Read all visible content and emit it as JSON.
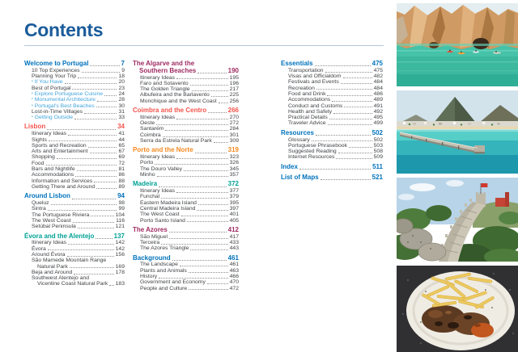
{
  "page_title": "Contents",
  "palette": {
    "blue": "#0072bc",
    "red": "#f2544b",
    "teal": "#00a295",
    "maroon": "#9e2b62",
    "orange": "#f5891f",
    "bullet_blue": "#41a4dc",
    "body_text": "#404245",
    "title_blue": "#1b5c9b",
    "rule": "#b5c6d6",
    "leader_dots": "#8f8f8f"
  },
  "toc": {
    "columns": [
      {
        "sections": [
          {
            "title": "Welcome to Portugal",
            "page": "7",
            "color": "blue",
            "items": [
              {
                "label": "10 Top Experiences",
                "page": "9"
              },
              {
                "label": "Planning Your Trip",
                "page": "18"
              },
              {
                "label": "If You Have",
                "page": "20",
                "bullet": true
              },
              {
                "label": "Best of Portugal",
                "page": "23"
              },
              {
                "label": "Explore Portuguese Cuisine",
                "page": "24",
                "bullet": true
              },
              {
                "label": "Monumental Architecture",
                "page": "28",
                "bullet": true
              },
              {
                "label": "Portugal's Best Beaches",
                "page": "30",
                "bullet": true
              },
              {
                "label": "Lost-in-Time Villages",
                "page": "31"
              },
              {
                "label": "Getting Outside",
                "page": "33",
                "bullet": true
              }
            ]
          },
          {
            "title": "Lisbon",
            "page": "34",
            "color": "red",
            "items": [
              {
                "label": "Itinerary Ideas",
                "page": "41"
              },
              {
                "label": "Sights",
                "page": "44"
              },
              {
                "label": "Sports and Recreation",
                "page": "65"
              },
              {
                "label": "Arts and Entertainment",
                "page": "67"
              },
              {
                "label": "Shopping",
                "page": "69"
              },
              {
                "label": "Food",
                "page": "72"
              },
              {
                "label": "Bars and Nightlife",
                "page": "81"
              },
              {
                "label": "Accommodations",
                "page": "86"
              },
              {
                "label": "Information and Services",
                "page": "88"
              },
              {
                "label": "Getting There and Around",
                "page": "89"
              }
            ]
          },
          {
            "title": "Around Lisbon",
            "page": "94",
            "color": "blue",
            "items": [
              {
                "label": "Queluz",
                "page": "98"
              },
              {
                "label": "Sintra",
                "page": "99"
              },
              {
                "label": "The Portuguese Riviera",
                "page": "104"
              },
              {
                "label": "The West Coast",
                "page": "116"
              },
              {
                "label": "Setúbal Peninsula",
                "page": "121"
              }
            ]
          },
          {
            "title": "Évora and the Alentejo",
            "page": "137",
            "color": "teal",
            "items": [
              {
                "label": "Itinerary Ideas",
                "page": "142"
              },
              {
                "label": "Évora",
                "page": "142"
              },
              {
                "label": "Around Évora",
                "page": "156"
              },
              {
                "lines": [
                  "São Mamede Mountain Range",
                  "Natural Park"
                ],
                "page": "169"
              },
              {
                "label": "Beja and Around",
                "page": "178"
              },
              {
                "lines": [
                  "Southwest Alentejo and",
                  "Vicentine Coast Natural Park"
                ],
                "page": "183"
              }
            ]
          }
        ]
      },
      {
        "sections": [
          {
            "title_lines": [
              "The Algarve and the",
              "Southern Beaches"
            ],
            "page": "190",
            "color": "maroon",
            "items": [
              {
                "label": "Itinerary Ideas",
                "page": "195"
              },
              {
                "label": "Faro and Sotavento",
                "page": "196"
              },
              {
                "label": "The Golden Triangle",
                "page": "217"
              },
              {
                "label": "Albufeira and the Barlavento",
                "page": "225"
              },
              {
                "label": "Monchique and the West Coast",
                "page": "256"
              }
            ]
          },
          {
            "title": "Coimbra and the Centro",
            "page": "266",
            "color": "red",
            "items": [
              {
                "label": "Itinerary Ideas",
                "page": "270"
              },
              {
                "label": "Oeste",
                "page": "272"
              },
              {
                "label": "Santarém",
                "page": "284"
              },
              {
                "label": "Coimbra",
                "page": "301"
              },
              {
                "label": "Serra da Estrela Natural Park",
                "page": "309"
              }
            ]
          },
          {
            "title": "Porto and the Norte",
            "page": "319",
            "color": "orange",
            "items": [
              {
                "label": "Itinerary Ideas",
                "page": "323"
              },
              {
                "label": "Porto",
                "page": "326"
              },
              {
                "label": "The Douro Valley",
                "page": "345"
              },
              {
                "label": "Minho",
                "page": "357"
              }
            ]
          },
          {
            "title": "Madeira",
            "page": "372",
            "color": "teal",
            "items": [
              {
                "label": "Itinerary Ideas",
                "page": "377"
              },
              {
                "label": "Funchal",
                "page": "379"
              },
              {
                "label": "Eastern Madeira Island",
                "page": "395"
              },
              {
                "label": "Central Madeira Island",
                "page": "397"
              },
              {
                "label": "The West Coast",
                "page": "401"
              },
              {
                "label": "Porto Santo Island",
                "page": "405"
              }
            ]
          },
          {
            "title": "The Azores",
            "page": "412",
            "color": "maroon",
            "items": [
              {
                "label": "São Miguel",
                "page": "417"
              },
              {
                "label": "Terceira",
                "page": "433"
              },
              {
                "label": "The Azores Triangle",
                "page": "443"
              }
            ]
          },
          {
            "title": "Background",
            "page": "461",
            "color": "blue",
            "items": [
              {
                "label": "The Landscape",
                "page": "461"
              },
              {
                "label": "Plants and Animals",
                "page": "463"
              },
              {
                "label": "History",
                "page": "466"
              },
              {
                "label": "Government and Economy",
                "page": "470"
              },
              {
                "label": "People and Culture",
                "page": "472"
              }
            ]
          }
        ]
      },
      {
        "sections": [
          {
            "title": "Essentials",
            "page": "475",
            "color": "blue",
            "items": [
              {
                "label": "Transportation",
                "page": "475"
              },
              {
                "label": "Visas and Officialdom",
                "page": "482"
              },
              {
                "label": "Festivals and Events",
                "page": "484"
              },
              {
                "label": "Recreation",
                "page": "484"
              },
              {
                "label": "Food and Drink",
                "page": "486"
              },
              {
                "label": "Accommodations",
                "page": "489"
              },
              {
                "label": "Conduct and Customs",
                "page": "491"
              },
              {
                "label": "Health and Safety",
                "page": "492"
              },
              {
                "label": "Practical Details",
                "page": "495"
              },
              {
                "label": "Traveler Advice",
                "page": "499"
              }
            ]
          },
          {
            "title": "Resources",
            "page": "502",
            "color": "blue",
            "items": [
              {
                "label": "Glossary",
                "page": "502"
              },
              {
                "label": "Portuguese Phrasebook",
                "page": "503"
              },
              {
                "label": "Suggested Reading",
                "page": "508"
              },
              {
                "label": "Internet Resources",
                "page": "509"
              }
            ]
          },
          {
            "title": "Index",
            "page": "511",
            "color": "blue",
            "items": []
          },
          {
            "title": "List of Maps",
            "page": "521",
            "color": "blue",
            "items": []
          }
        ]
      }
    ]
  },
  "photos": [
    {
      "name": "algarve-sea-cliffs-with-kayakers"
    },
    {
      "name": "porto-santo-pier-beach-town"
    },
    {
      "name": "moorish-castle-walls-sintra"
    },
    {
      "name": "piri-piri-chicken-and-fries"
    }
  ]
}
